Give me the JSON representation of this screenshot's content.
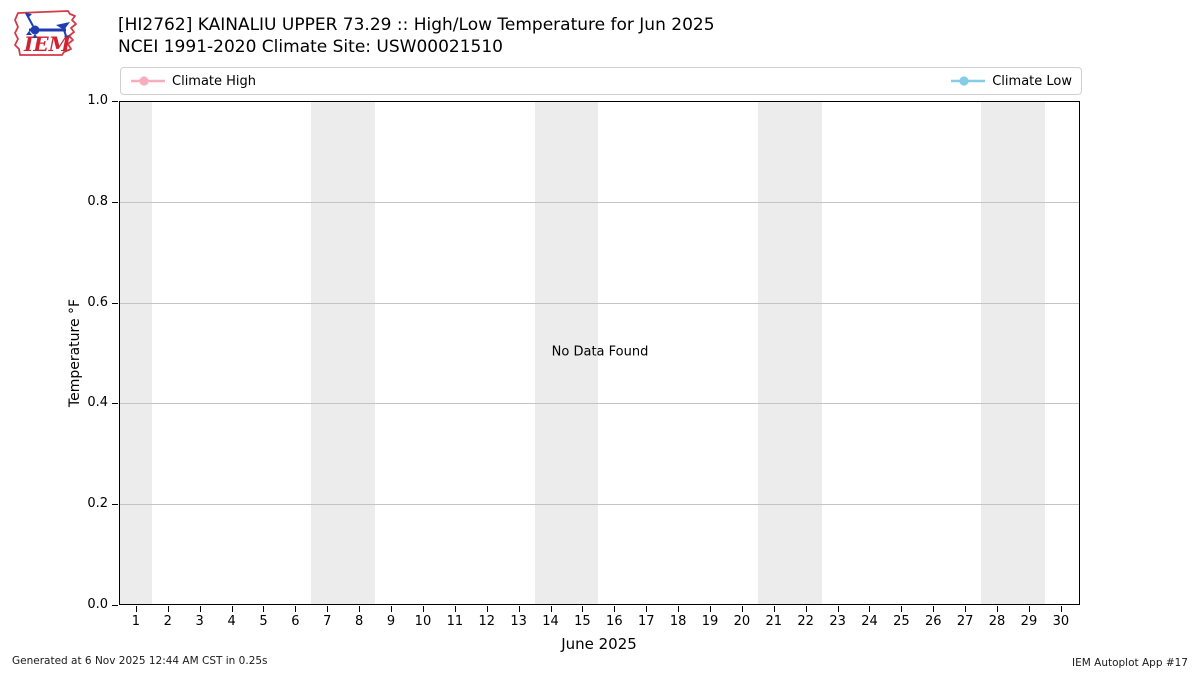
{
  "header": {
    "title_line1": "[HI2762] KAINALIU UPPER 73.29 :: High/Low Temperature for Jun 2025",
    "title_line2": "NCEI 1991-2020 Climate Site: USW00021510",
    "logo_text": "IEM"
  },
  "legend": {
    "position": "top, full-width strip, entries at far left and far right",
    "entries": [
      {
        "label": "Climate High",
        "color": "#f9aebd"
      },
      {
        "label": "Climate Low",
        "color": "#85cce8"
      }
    ]
  },
  "chart_data": {
    "type": "line",
    "title": "[HI2762] KAINALIU UPPER 73.29 :: High/Low Temperature for Jun 2025",
    "subtitle": "NCEI 1991-2020 Climate Site: USW00021510",
    "xlabel": "June 2025",
    "ylabel": "Temperature °F",
    "xlim": [
      0.47,
      30.6
    ],
    "ylim": [
      0.0,
      1.0
    ],
    "yticks": [
      0.0,
      0.2,
      0.4,
      0.6,
      0.8,
      1.0
    ],
    "ytick_labels": [
      "0.0",
      "0.2",
      "0.4",
      "0.6",
      "0.8",
      "1.0"
    ],
    "xticks": [
      1,
      2,
      3,
      4,
      5,
      6,
      7,
      8,
      9,
      10,
      11,
      12,
      13,
      14,
      15,
      16,
      17,
      18,
      19,
      20,
      21,
      22,
      23,
      24,
      25,
      26,
      27,
      28,
      29,
      30
    ],
    "grid": "y-only",
    "series": [
      {
        "name": "Climate High",
        "color": "#f9aebd",
        "x": [],
        "values": []
      },
      {
        "name": "Climate Low",
        "color": "#85cce8",
        "x": [],
        "values": []
      }
    ],
    "no_data": true,
    "annotation": "No Data Found",
    "weekend_bands": [
      [
        0.47,
        1.5
      ],
      [
        6.5,
        8.5
      ],
      [
        13.5,
        15.5
      ],
      [
        20.5,
        22.5
      ],
      [
        27.5,
        29.5
      ]
    ],
    "band_color": "#ececec"
  },
  "footer": {
    "generated": "Generated at 6 Nov 2025 12:44 AM CST in 0.25s",
    "app": "IEM Autoplot App #17"
  }
}
